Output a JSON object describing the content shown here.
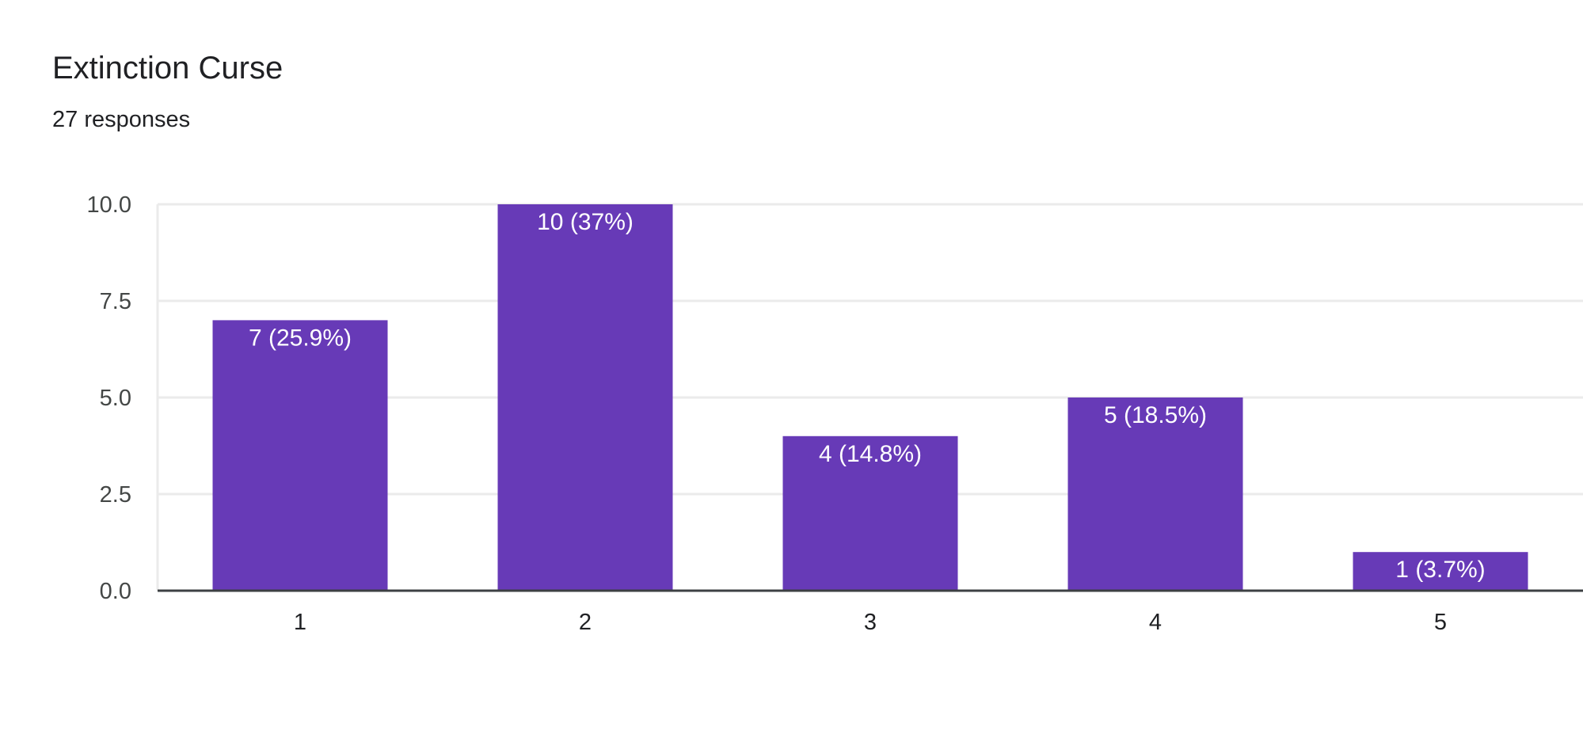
{
  "header": {
    "title": "Extinction Curse",
    "subtitle": "27 responses"
  },
  "chart_data": {
    "type": "bar",
    "title": "Extinction Curse",
    "subtitle": "27 responses",
    "categories": [
      "1",
      "2",
      "3",
      "4",
      "5"
    ],
    "values": [
      7,
      10,
      4,
      5,
      1
    ],
    "data_labels": [
      "7 (25.9%)",
      "10 (37%)",
      "4 (14.8%)",
      "5 (18.5%)",
      "1 (3.7%)"
    ],
    "ylim": [
      0,
      10
    ],
    "yticks": [
      "0.0",
      "2.5",
      "5.0",
      "7.5",
      "10.0"
    ],
    "grid": true,
    "legend": "none",
    "bar_color": "#673ab7",
    "gridline_color": "#ebebeb",
    "axis_color": "#3c4043"
  }
}
